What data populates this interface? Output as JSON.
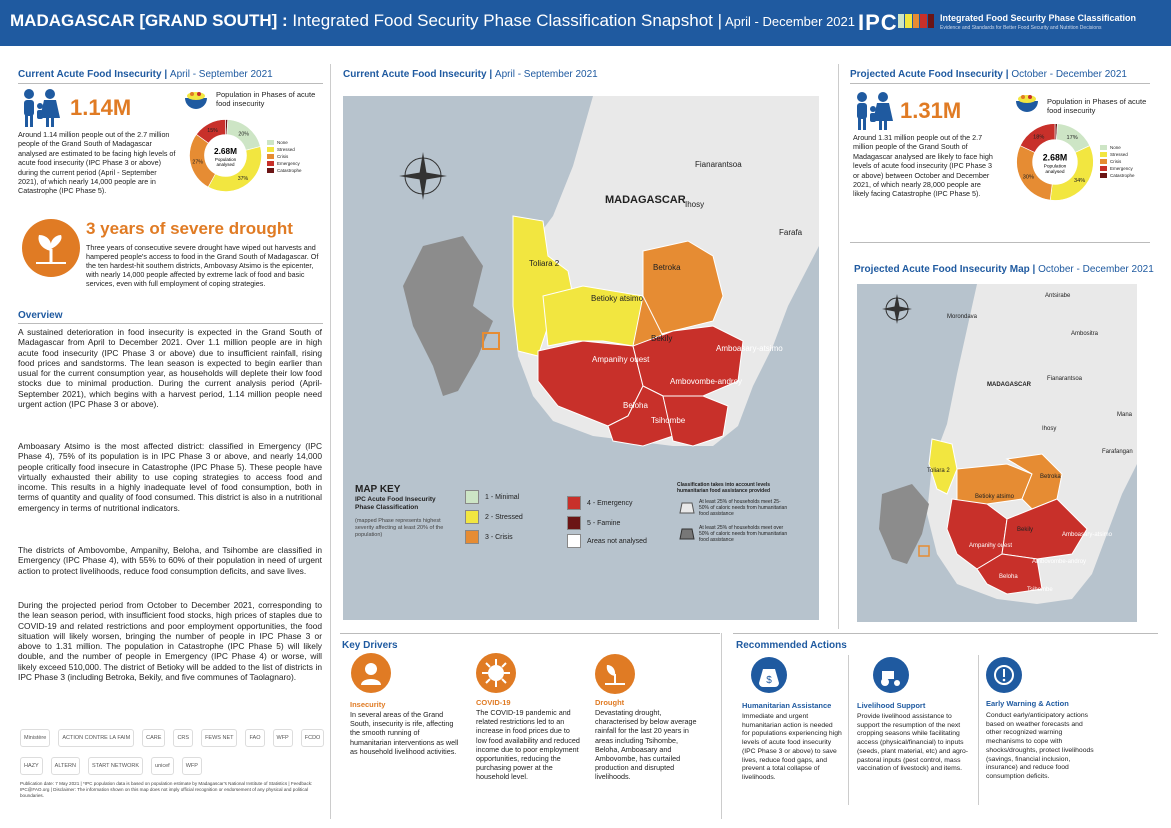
{
  "header": {
    "title_main": "MADAGASCAR [GRAND SOUTH] :",
    "title_sub": " Integrated Food Security Phase Classification Snapshot |",
    "title_dates": " April - December  2021",
    "ipc_logo": "IPC",
    "ipc_name": "Integrated Food Security Phase Classification",
    "ipc_tagline": "Evidence and Standards for Better Food Security and Nutrition Decisions",
    "bar_colors": [
      "#cde5c5",
      "#f2e640",
      "#e68c33",
      "#c8302a",
      "#6b1515"
    ]
  },
  "current": {
    "title": "Current Acute Food Insecurity",
    "period": "April - September 2021",
    "number": "1.14M",
    "paragraph": "Around 1.14 million people out of the 2.7 million people of the Grand South of Madagascar analysed are estimated to be facing high levels of acute food insecurity (IPC Phase 3 or above) during the current period (April - September 2021), of which nearly 14,000 people are in Catastrophe  (IPC Phase 5).",
    "donut_caption": "Population in Phases of acute food insecurity",
    "donut_center_value": "2.68M",
    "donut_center_label": "Population analysed",
    "slices": [
      {
        "label": "1%",
        "value": 1,
        "color": "#6b1515"
      },
      {
        "label": "20%",
        "value": 20,
        "color": "#cde5c5"
      },
      {
        "label": "37%",
        "value": 37,
        "color": "#f2e640"
      },
      {
        "label": "27%",
        "value": 27,
        "color": "#e68c33"
      },
      {
        "label": "15%",
        "value": 15,
        "color": "#c8302a"
      }
    ]
  },
  "projected": {
    "title": "Projected Acute Food Insecurity",
    "period": "October - December 2021",
    "number": "1.31M",
    "paragraph": "Around 1.31 million people out of the 2.7 million people of the Grand South of Madagascar analysed are likely to face high levels of acute food insecurity (IPC Phase 3 or above) between October and December 2021, of which nearly 28,000 people are likely facing Catastrophe (IPC Phase 5).",
    "donut_caption": "Population in Phases of acute food insecurity",
    "donut_center_value": "2.68M",
    "donut_center_label": "Population analysed",
    "slices": [
      {
        "label": "1%",
        "value": 1,
        "color": "#6b1515"
      },
      {
        "label": "17%",
        "value": 17,
        "color": "#cde5c5"
      },
      {
        "label": "34%",
        "value": 34,
        "color": "#f2e640"
      },
      {
        "label": "30%",
        "value": 30,
        "color": "#e68c33"
      },
      {
        "label": "18%",
        "value": 18,
        "color": "#c8302a"
      }
    ]
  },
  "donut_legend": [
    "None",
    "Stressed",
    "Crisis",
    "Emergency",
    "Catastrophe"
  ],
  "drought": {
    "title": "3 years of severe drought",
    "text": "Three years of consecutive severe drought have wiped out harvests and hampered people's access to food in the Grand South of Madagascar. Of the ten hardest-hit southern districts, Ambovasy Atsimo is the epicenter, with nearly 14,000 people affected by extreme lack of food and basic services, even with full employment of coping strategies."
  },
  "overview": {
    "title": "Overview",
    "p1": "A sustained deterioration in food insecurity is expected in the Grand South of Madagascar from April to December 2021. Over 1.1 million people are in high acute food insecurity (IPC Phase 3 or above) due to insufficient rainfall, rising food prices and sandstorms. The lean season is expected to begin earlier than usual for the current consumption year, as households will deplete their low food stocks due to minimal production. During the current analysis period (April-September 2021), which begins with a harvest period, 1.14 million people need urgent action (IPC Phase 3 or above).",
    "p2": "Amboasary Atsimo is the most affected district: classified in Emergency (IPC Phase 4), 75% of its population is in IPC Phase 3 or above, and nearly 14,000 people critically food insecure in Catastrophe (IPC Phase 5). These people have virtually exhausted their ability to use coping strategies to access food and income. This results in a highly inadequate level of food consumption, both in terms of quantity and quality of food consumed. This district is also in a nutritional emergency in terms of nutritional indicators.",
    "p3": "The districts of Ambovombe, Ampanihy, Beloha, and Tsihombe are classified in Emergency (IPC Phase 4), with 55% to 60% of their population in need of urgent action to protect livelihoods, reduce food consumption deficits, and save lives.",
    "p4": "During the projected period from October to December 2021, corresponding to the lean season period, with insufficient food stocks, high prices of staples due to COVID-19 and related restrictions and poor employment opportunities, the food situation will likely worsen, bringing the number of people in IPC Phase 3 or above to 1.31 million. The population in Catastrophe (IPC Phase 5) will likely double, and the number of people in Emergency (IPC Phase 4) or worse, will likely exceed 510,000. The district of Betioky will be added to the list of districts in IPC Phase 3 (including Betroka, Bekily, and five communes of Taolagnaro)."
  },
  "main_map": {
    "title": "Current Acute Food Insecurity",
    "period": "April - September 2021",
    "country_label": "MADAGASCAR",
    "places": [
      "Fianarantsoa",
      "Ihosy",
      "Farafa",
      "Toliara 2",
      "Betroka",
      "Betioky atsimo",
      "Bekily",
      "Ampanihy ouest",
      "Amboasary-atsimo",
      "Ambovombe-androy",
      "Beloha",
      "Tsihombe"
    ]
  },
  "map_key": {
    "title": "MAP KEY",
    "subtitle": "IPC Acute Food Insecurity Phase Classification",
    "note": "(mapped Phase represents highest severity affecting at least 20% of the population)",
    "phases": [
      {
        "label": "1 - Minimal",
        "color": "#cde5c5"
      },
      {
        "label": "2 - Stressed",
        "color": "#f2e640"
      },
      {
        "label": "3 - Crisis",
        "color": "#e68c33"
      },
      {
        "label": "4 - Emergency",
        "color": "#c8302a"
      },
      {
        "label": "5 - Famine",
        "color": "#6b1515"
      },
      {
        "label": "Areas not analysed",
        "color": "#ffffff"
      }
    ],
    "assist_title": "Classification takes into account levels humanitarian food assistance provided",
    "assist_1": "At least 25% of households meet 25-50% of caloric needs from humanitarian food assistance",
    "assist_2": "At least 25% of households meet over 50% of caloric needs from humanitarian food assistance"
  },
  "side_map": {
    "title": "Projected Acute Food Insecurity Map",
    "period": "October - December 2021",
    "country_label": "MADAGASCAR",
    "places": [
      "Antsirabe",
      "Morondava",
      "Ambositra",
      "Fianarantsoa",
      "Mana",
      "Ihosy",
      "Farafangan",
      "Toliara 2",
      "Betroka",
      "Betioky atsimo",
      "Bekily",
      "Ampanihy ouest",
      "Amboasary-atsimo",
      "Ambovombe-androy",
      "Beloha",
      "Tsihombe"
    ]
  },
  "drivers": {
    "title": "Key Drivers",
    "items": [
      {
        "title": "Insecurity",
        "text": "In several areas of the Grand South, insecurity is rife, affecting the smooth running of humanitarian interventions as well as household livelihood activities."
      },
      {
        "title": "COVID-19",
        "text": "The COVID-19 pandemic and related restrictions led to an increase in food prices due to low food availability and reduced income due to poor employment opportunities, reducing the purchasing power at the household level."
      },
      {
        "title": "Drought",
        "text": "Devastating drought, characterised by below average rainfall for the last 20 years in areas including Tsihombe, Beloha, Amboasary and Ambovombe, has curtailed production and disrupted livelihoods."
      }
    ]
  },
  "actions": {
    "title": "Recommended Actions",
    "items": [
      {
        "title": "Humanitarian Assistance",
        "text": "Immediate and urgent humanitarian action is needed for populations experiencing high levels of acute food insecurity (IPC Phase 3 or above) to save lives, reduce food gaps, and prevent a total collapse of livelihoods."
      },
      {
        "title": "Livelihood Support",
        "text": "Provide livelihood assistance to support the resumption of the next cropping seasons while facilitating access (physical/financial) to inputs (seeds, plant material, etc) and agro-pastoral inputs (pest control, mass vaccination of livestock) and items."
      },
      {
        "title": "Early Warning & Action",
        "text": "Conduct early/anticipatory actions based on weather forecasts and other recognized warning mechanisms to cope with shocks/droughts, protect livelihoods (savings, financial inclusion, insurance) and reduce food consumption deficits."
      }
    ]
  },
  "logos": [
    "Ministère",
    "ACTION CONTRE LA FAIM",
    "CARE",
    "CRS",
    "FEWS NET",
    "FAO",
    "WFP",
    "FCDO",
    "HAZY",
    "ALTERN",
    "START NETWORK",
    "unicef",
    "WFP"
  ],
  "footer_note": "Publication date: 7 May 2021 | *IPC population data is based on population estimate by Madagascar's National Institute of Statistics | Feedback: IPC@FAO.org | Disclaimer: The information shown on this map does not imply official recognition or endorsement of any physical and political boundaries."
}
